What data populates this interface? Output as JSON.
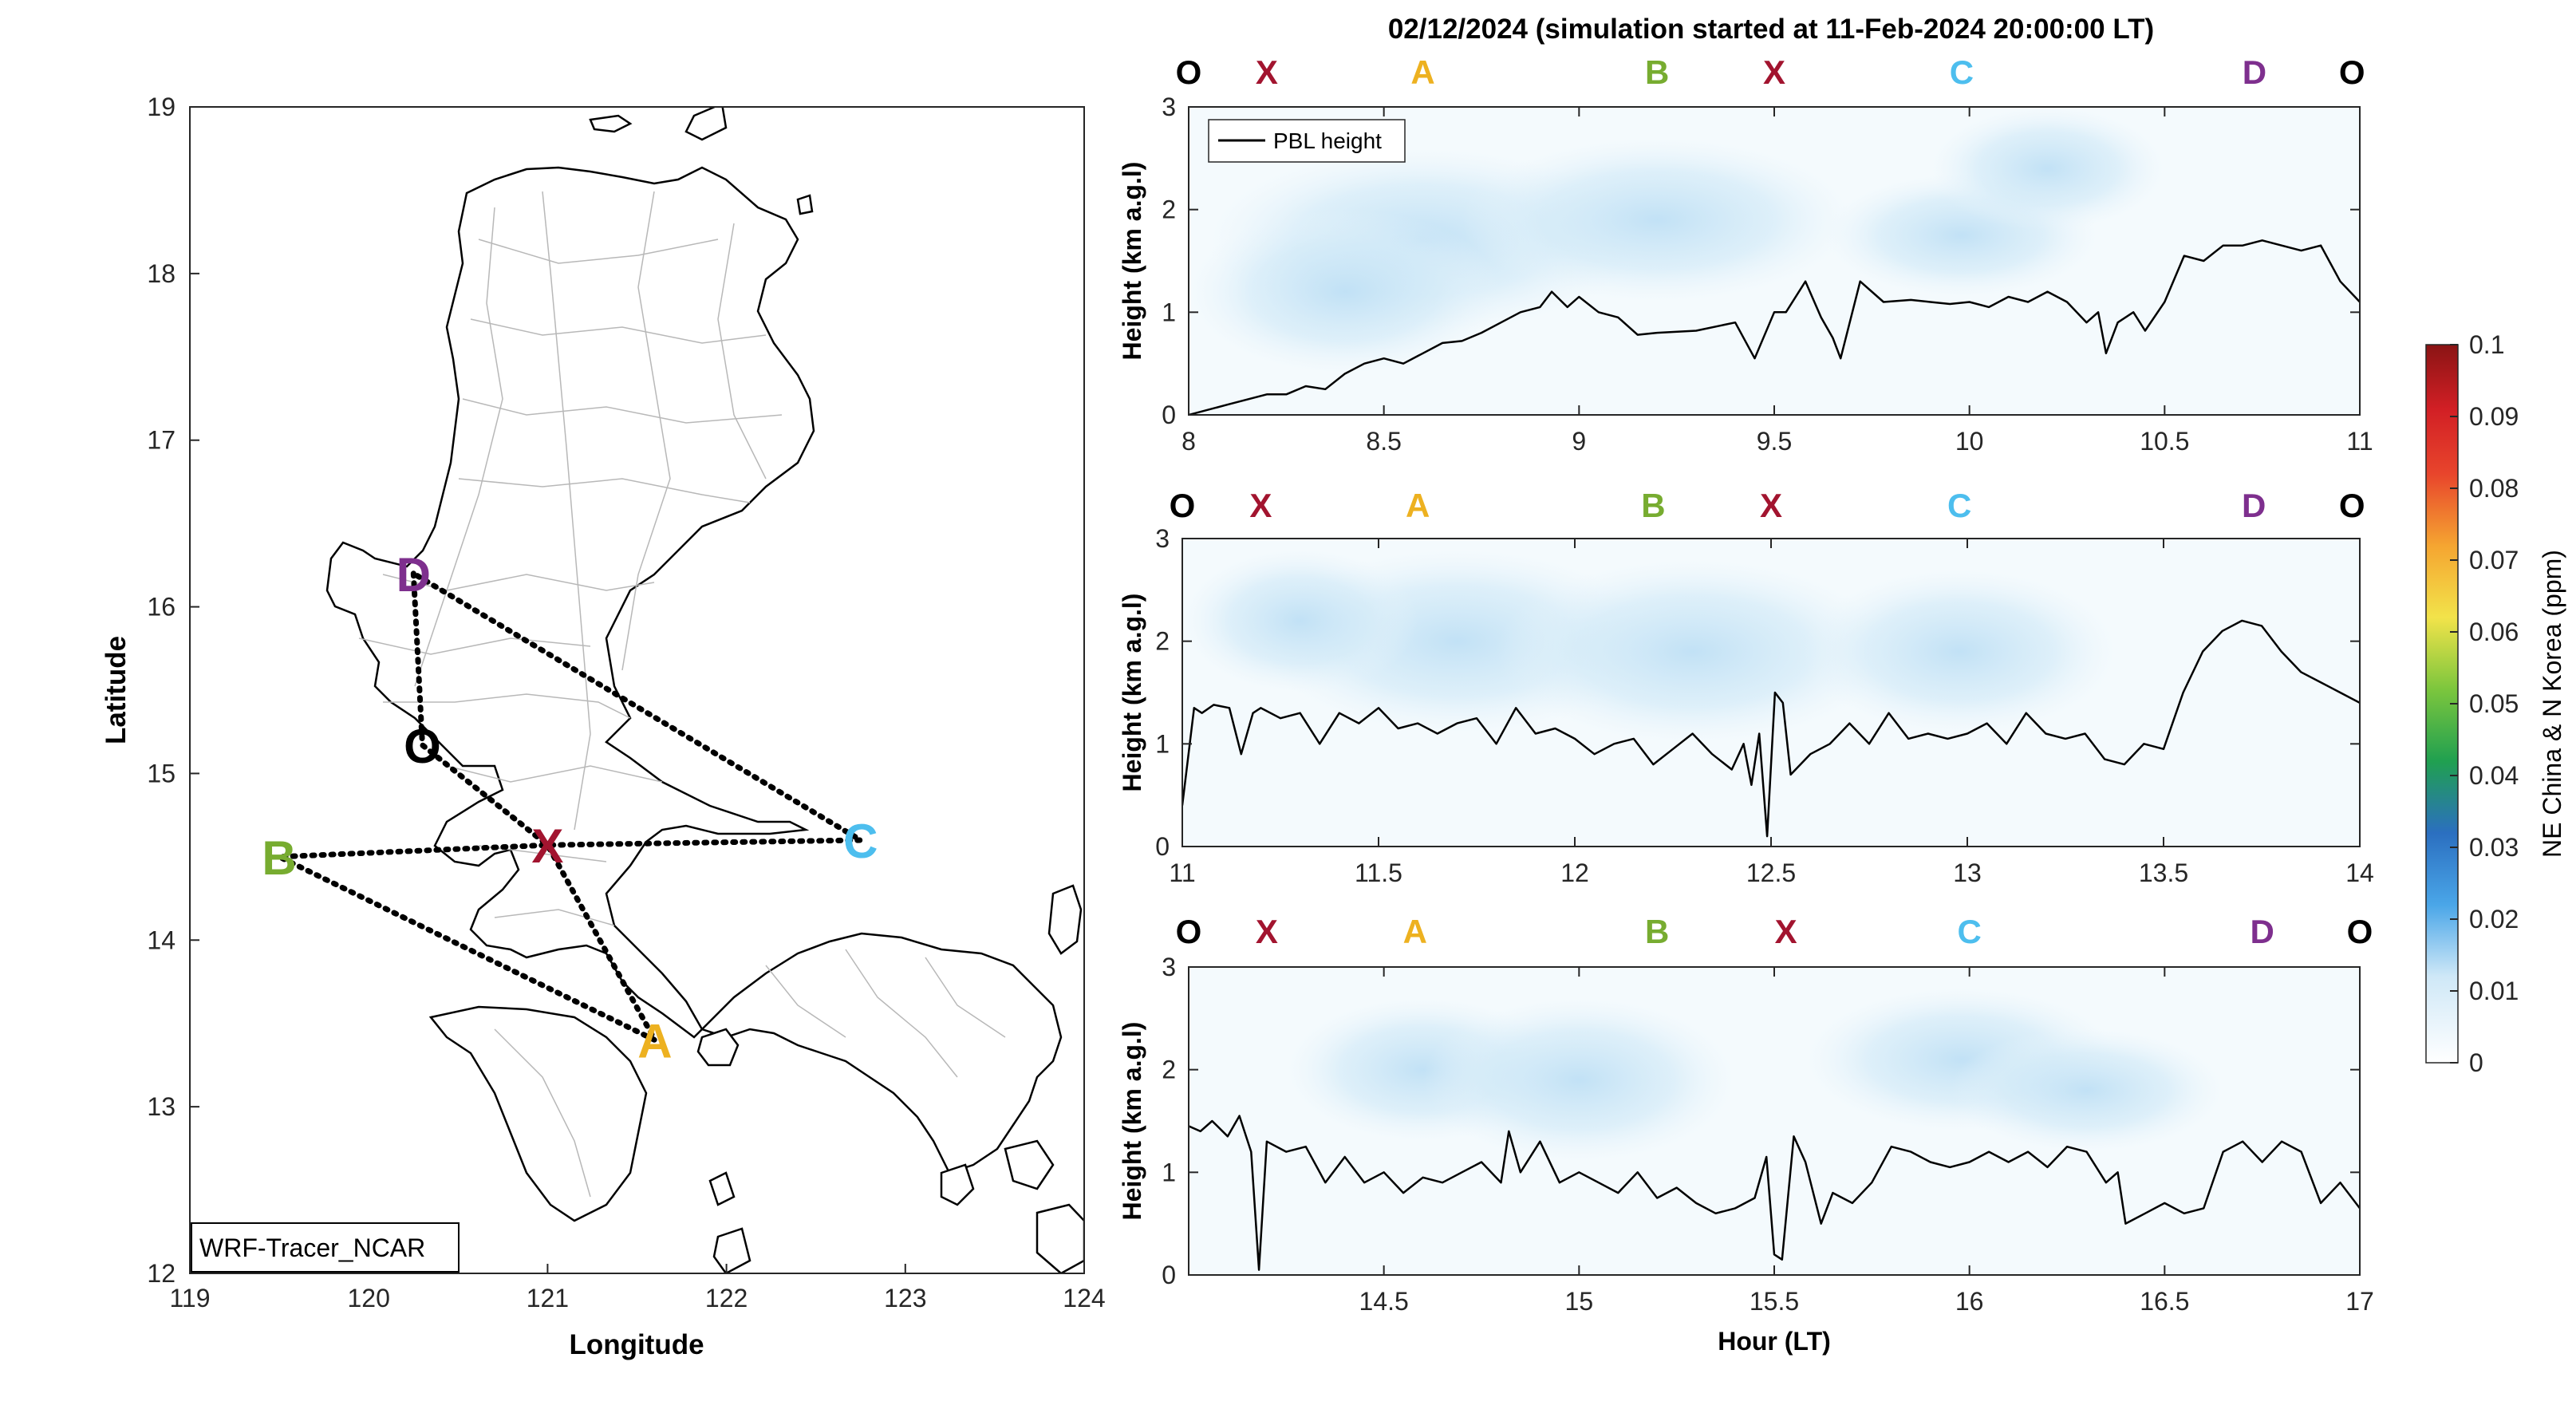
{
  "figure_title": "02/12/2024 (simulation started at 11-Feb-2024 20:00:00 LT)",
  "map": {
    "xlabel": "Longitude",
    "ylabel": "Latitude",
    "xticks": [
      "119",
      "120",
      "121",
      "122",
      "123",
      "124"
    ],
    "yticks": [
      "12",
      "13",
      "14",
      "15",
      "16",
      "17",
      "18",
      "19"
    ],
    "xlim": [
      119,
      124
    ],
    "ylim": [
      12,
      19
    ],
    "model_label": "WRF-Tracer_NCAR",
    "sites": [
      {
        "id": "O",
        "label": "O",
        "lon": 120.3,
        "lat": 15.17,
        "color": "#000000"
      },
      {
        "id": "X",
        "label": "X",
        "lon": 121.0,
        "lat": 14.57,
        "color": "#a2142f"
      },
      {
        "id": "A",
        "label": "A",
        "lon": 121.6,
        "lat": 13.4,
        "color": "#edb120"
      },
      {
        "id": "B",
        "label": "B",
        "lon": 119.5,
        "lat": 14.5,
        "color": "#77ac30"
      },
      {
        "id": "C",
        "label": "C",
        "lon": 122.75,
        "lat": 14.6,
        "color": "#4dbeee"
      },
      {
        "id": "D",
        "label": "D",
        "lon": 120.25,
        "lat": 16.2,
        "color": "#7e2f8e"
      }
    ],
    "flight_path": [
      "D",
      "O",
      "X",
      "A",
      "B",
      "X",
      "C",
      "D"
    ]
  },
  "colorbar": {
    "label": "NE China & N Korea (ppm)",
    "ticks": [
      "0",
      "0.01",
      "0.02",
      "0.03",
      "0.04",
      "0.05",
      "0.06",
      "0.07",
      "0.08",
      "0.09",
      "0.1"
    ]
  },
  "panel_labels": [
    "O",
    "X",
    "A",
    "B",
    "X",
    "C",
    "D",
    "O"
  ],
  "panel_label_colors": [
    "#000000",
    "#a2142f",
    "#edb120",
    "#77ac30",
    "#a2142f",
    "#4dbeee",
    "#7e2f8e",
    "#000000"
  ],
  "chart_data": [
    {
      "type": "line",
      "ylabel": "Height (km a.g.l)",
      "ylim": [
        0,
        3
      ],
      "xlim": [
        8,
        11
      ],
      "xticks": [
        "8",
        "8.5",
        "9",
        "9.5",
        "10",
        "10.5",
        "11"
      ],
      "yticks": [
        "0",
        "1",
        "2",
        "3"
      ],
      "legend": "PBL height",
      "legend_position": "top-left",
      "label_hours": [
        8.0,
        8.2,
        8.6,
        9.2,
        9.5,
        9.98,
        10.73,
        10.98
      ],
      "series": [
        {
          "name": "PBL height",
          "x": [
            8.0,
            8.1,
            8.15,
            8.2,
            8.25,
            8.3,
            8.35,
            8.4,
            8.45,
            8.5,
            8.55,
            8.6,
            8.65,
            8.7,
            8.75,
            8.8,
            8.85,
            8.9,
            8.93,
            8.97,
            9.0,
            9.05,
            9.1,
            9.15,
            9.2,
            9.3,
            9.4,
            9.45,
            9.5,
            9.53,
            9.58,
            9.62,
            9.65,
            9.67,
            9.72,
            9.78,
            9.85,
            9.9,
            9.95,
            10.0,
            10.05,
            10.1,
            10.15,
            10.2,
            10.25,
            10.3,
            10.33,
            10.35,
            10.38,
            10.42,
            10.45,
            10.5,
            10.55,
            10.6,
            10.65,
            10.7,
            10.75,
            10.8,
            10.85,
            10.9,
            10.95,
            11.0
          ],
          "y": [
            0.0,
            0.1,
            0.15,
            0.2,
            0.2,
            0.28,
            0.25,
            0.4,
            0.5,
            0.55,
            0.5,
            0.6,
            0.7,
            0.72,
            0.8,
            0.9,
            1.0,
            1.05,
            1.2,
            1.05,
            1.15,
            1.0,
            0.95,
            0.78,
            0.8,
            0.82,
            0.9,
            0.55,
            1.0,
            1.0,
            1.3,
            0.95,
            0.75,
            0.55,
            1.3,
            1.1,
            1.12,
            1.1,
            1.08,
            1.1,
            1.05,
            1.15,
            1.1,
            1.2,
            1.1,
            0.9,
            1.0,
            0.6,
            0.9,
            1.0,
            0.82,
            1.1,
            1.55,
            1.5,
            1.65,
            1.65,
            1.7,
            1.65,
            1.6,
            1.65,
            1.3,
            1.1
          ]
        }
      ]
    },
    {
      "type": "line",
      "ylabel": "Height (km a.g.l)",
      "ylim": [
        0,
        3
      ],
      "xlim": [
        11,
        14
      ],
      "xticks": [
        "11",
        "11.5",
        "12",
        "12.5",
        "13",
        "13.5",
        "14"
      ],
      "yticks": [
        "0",
        "1",
        "2",
        "3"
      ],
      "label_hours": [
        11.0,
        11.2,
        11.6,
        12.2,
        12.5,
        12.98,
        13.73,
        13.98
      ],
      "series": [
        {
          "name": "PBL height",
          "x": [
            11.0,
            11.03,
            11.05,
            11.08,
            11.12,
            11.15,
            11.18,
            11.2,
            11.25,
            11.3,
            11.35,
            11.4,
            11.45,
            11.5,
            11.55,
            11.6,
            11.65,
            11.7,
            11.75,
            11.8,
            11.85,
            11.9,
            11.95,
            12.0,
            12.05,
            12.1,
            12.15,
            12.2,
            12.25,
            12.3,
            12.35,
            12.4,
            12.43,
            12.45,
            12.47,
            12.49,
            12.51,
            12.53,
            12.55,
            12.6,
            12.65,
            12.7,
            12.75,
            12.8,
            12.85,
            12.9,
            12.95,
            13.0,
            13.05,
            13.1,
            13.15,
            13.2,
            13.25,
            13.3,
            13.35,
            13.4,
            13.45,
            13.5,
            13.55,
            13.6,
            13.65,
            13.7,
            13.75,
            13.8,
            13.85,
            13.9,
            13.95,
            14.0
          ],
          "y": [
            0.4,
            1.35,
            1.3,
            1.38,
            1.35,
            0.9,
            1.3,
            1.35,
            1.25,
            1.3,
            1.0,
            1.3,
            1.2,
            1.35,
            1.15,
            1.2,
            1.1,
            1.2,
            1.25,
            1.0,
            1.35,
            1.1,
            1.15,
            1.05,
            0.9,
            1.0,
            1.05,
            0.8,
            0.95,
            1.1,
            0.9,
            0.75,
            1.0,
            0.6,
            1.1,
            0.1,
            1.5,
            1.4,
            0.7,
            0.9,
            1.0,
            1.2,
            1.0,
            1.3,
            1.05,
            1.1,
            1.05,
            1.1,
            1.2,
            1.0,
            1.3,
            1.1,
            1.05,
            1.1,
            0.85,
            0.8,
            1.0,
            0.95,
            1.5,
            1.9,
            2.1,
            2.2,
            2.15,
            1.9,
            1.7,
            1.6,
            1.5,
            1.4
          ]
        }
      ]
    },
    {
      "type": "line",
      "ylabel": "Height (km a.g.l)",
      "xlabel": "Hour (LT)",
      "ylim": [
        0,
        3
      ],
      "xlim": [
        14.0,
        17.0
      ],
      "xticks": [
        "14.5",
        "15",
        "15.5",
        "16",
        "16.5",
        "17"
      ],
      "yticks": [
        "0",
        "1",
        "2",
        "3"
      ],
      "label_hours": [
        14.0,
        14.2,
        14.58,
        15.2,
        15.53,
        16.0,
        16.75,
        17.0
      ],
      "series": [
        {
          "name": "PBL height",
          "x": [
            14.0,
            14.03,
            14.06,
            14.1,
            14.13,
            14.16,
            14.18,
            14.2,
            14.25,
            14.3,
            14.35,
            14.4,
            14.45,
            14.5,
            14.55,
            14.6,
            14.65,
            14.7,
            14.75,
            14.8,
            14.82,
            14.85,
            14.9,
            14.95,
            15.0,
            15.05,
            15.1,
            15.15,
            15.2,
            15.25,
            15.3,
            15.35,
            15.4,
            15.45,
            15.48,
            15.5,
            15.52,
            15.55,
            15.58,
            15.62,
            15.65,
            15.7,
            15.75,
            15.8,
            15.85,
            15.9,
            15.95,
            16.0,
            16.05,
            16.1,
            16.15,
            16.2,
            16.25,
            16.3,
            16.35,
            16.38,
            16.4,
            16.45,
            16.5,
            16.55,
            16.6,
            16.65,
            16.7,
            16.75,
            16.8,
            16.85,
            16.9,
            16.95,
            17.0
          ],
          "y": [
            1.45,
            1.4,
            1.5,
            1.35,
            1.55,
            1.2,
            0.05,
            1.3,
            1.2,
            1.25,
            0.9,
            1.15,
            0.9,
            1.0,
            0.8,
            0.95,
            0.9,
            1.0,
            1.1,
            0.9,
            1.4,
            1.0,
            1.3,
            0.9,
            1.0,
            0.9,
            0.8,
            1.0,
            0.75,
            0.85,
            0.7,
            0.6,
            0.65,
            0.75,
            1.15,
            0.2,
            0.15,
            1.35,
            1.1,
            0.5,
            0.8,
            0.7,
            0.9,
            1.25,
            1.2,
            1.1,
            1.05,
            1.1,
            1.2,
            1.1,
            1.2,
            1.05,
            1.25,
            1.2,
            0.9,
            1.0,
            0.5,
            0.6,
            0.7,
            0.6,
            0.65,
            1.2,
            1.3,
            1.1,
            1.3,
            1.2,
            0.7,
            0.9,
            0.65
          ]
        }
      ]
    }
  ],
  "colors": {
    "pbl_line": "#000000",
    "plume": "#cfe8f7",
    "coast": "#000000",
    "boundary": "#b8b8b8"
  }
}
